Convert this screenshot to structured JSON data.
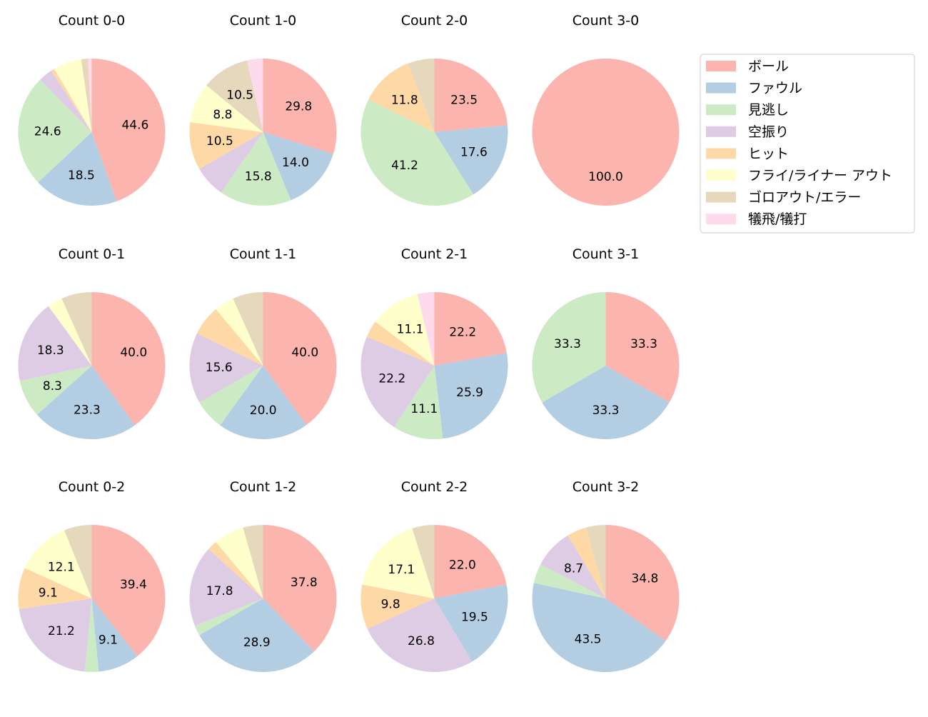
{
  "chart_data": {
    "type": "pie",
    "legend_position": "top-right",
    "categories": [
      "ボール",
      "ファウル",
      "見逃し",
      "空振り",
      "ヒット",
      "フライ/ライナー アウト",
      "ゴロアウト/エラー",
      "犠飛/犠打"
    ],
    "colors": [
      "#fbb4ae",
      "#b3cde3",
      "#ccebc5",
      "#decbe4",
      "#fed9a6",
      "#ffffcc",
      "#e5d8bd",
      "#fddaec"
    ],
    "label_threshold": 8,
    "charts": [
      {
        "title": "Count 0-0",
        "values": [
          44.6,
          18.5,
          24.6,
          3.1,
          0.8,
          6.2,
          1.5,
          0.8
        ]
      },
      {
        "title": "Count 1-0",
        "values": [
          29.8,
          14.0,
          15.8,
          7.0,
          10.5,
          8.8,
          10.5,
          3.5
        ]
      },
      {
        "title": "Count 2-0",
        "values": [
          23.5,
          17.6,
          41.2,
          0,
          11.8,
          0,
          5.9,
          0
        ]
      },
      {
        "title": "Count 3-0",
        "values": [
          100.0,
          0,
          0,
          0,
          0,
          0,
          0,
          0
        ]
      },
      {
        "title": "Count 0-1",
        "values": [
          40.0,
          23.3,
          8.3,
          18.3,
          0,
          3.3,
          6.7,
          0
        ]
      },
      {
        "title": "Count 1-1",
        "values": [
          40.0,
          20.0,
          6.7,
          15.6,
          6.7,
          4.4,
          6.7,
          0
        ]
      },
      {
        "title": "Count 2-1",
        "values": [
          22.2,
          25.9,
          11.1,
          22.2,
          3.7,
          11.1,
          0,
          3.7
        ]
      },
      {
        "title": "Count 3-1",
        "values": [
          33.3,
          33.3,
          33.3,
          0,
          0,
          0,
          0,
          0
        ]
      },
      {
        "title": "Count 0-2",
        "values": [
          39.4,
          9.1,
          3.0,
          21.2,
          9.1,
          12.1,
          6.1,
          0
        ]
      },
      {
        "title": "Count 1-2",
        "values": [
          37.8,
          28.9,
          2.2,
          17.8,
          2.2,
          6.7,
          4.4,
          0
        ]
      },
      {
        "title": "Count 2-2",
        "values": [
          22.0,
          19.5,
          0,
          26.8,
          9.8,
          17.1,
          4.9,
          0
        ]
      },
      {
        "title": "Count 3-2",
        "values": [
          34.8,
          43.5,
          4.3,
          8.7,
          4.3,
          0,
          4.3,
          0
        ]
      }
    ]
  }
}
